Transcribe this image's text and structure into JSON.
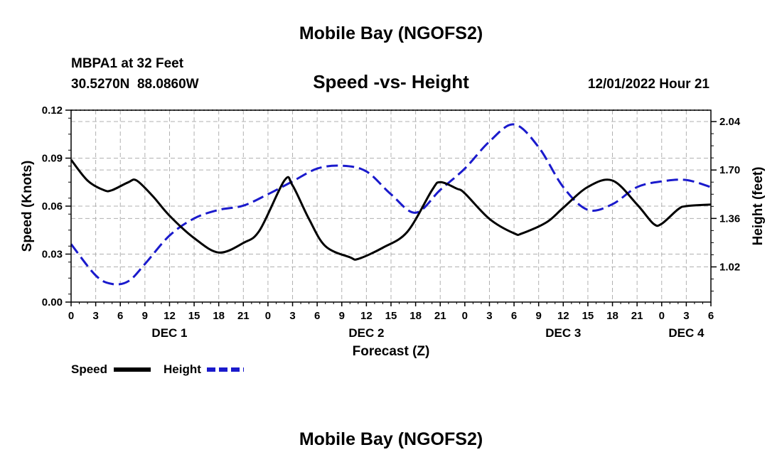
{
  "header": {
    "title": "Mobile Bay (NGOFS2)",
    "station": "MBPA1 at 32 Feet",
    "coords": "30.5270N  88.0860W",
    "subtitle": "Speed -vs- Height",
    "timestamp": "12/01/2022 Hour 21"
  },
  "footer": {
    "title": "Mobile Bay (NGOFS2)"
  },
  "legend": {
    "speed_label": "Speed",
    "height_label": "Height"
  },
  "colors": {
    "speed": "#000000",
    "height": "#1a1acc",
    "grid": "#b0b0b0"
  },
  "chart_data": {
    "type": "line",
    "xlabel": "Forecast (Z)",
    "ylabel_left": "Speed (Knots)",
    "ylabel_right": "Height (feet)",
    "x_unit": "hours since 2022-12-01 00Z",
    "xlim": [
      0,
      78
    ],
    "x_tick_labels": [
      "0",
      "3",
      "6",
      "9",
      "12",
      "15",
      "18",
      "21",
      "0",
      "3",
      "6",
      "9",
      "12",
      "15",
      "18",
      "21",
      "0",
      "3",
      "6",
      "9",
      "12",
      "15",
      "18",
      "21",
      "0",
      "3",
      "6"
    ],
    "date_labels": [
      {
        "label": "DEC 1",
        "x": 12
      },
      {
        "label": "DEC 2",
        "x": 36
      },
      {
        "label": "DEC 3",
        "x": 60
      },
      {
        "label": "DEC 4",
        "x": 75
      }
    ],
    "left_axis": {
      "ylim": [
        0,
        0.12
      ],
      "ticks": [
        "0.00",
        "0.03",
        "0.06",
        "0.09",
        "0.12"
      ]
    },
    "right_axis": {
      "ylim": [
        0.773,
        2.12
      ],
      "ticks": [
        "1.02",
        "1.36",
        "1.70",
        "2.04"
      ]
    },
    "grid": true,
    "legend_position": "bottom-left",
    "series": [
      {
        "name": "Speed",
        "axis": "left",
        "style": "solid",
        "x": [
          0,
          2,
          4,
          5,
          7,
          8,
          10,
          12,
          15,
          18,
          21,
          23,
          26,
          27,
          29,
          31,
          34,
          35,
          38,
          41,
          44,
          45,
          47,
          48,
          51,
          54,
          55,
          58,
          60,
          63,
          66,
          69,
          71,
          72,
          74,
          75,
          78
        ],
        "y": [
          0.089,
          0.076,
          0.07,
          0.07,
          0.075,
          0.076,
          0.066,
          0.054,
          0.04,
          0.031,
          0.037,
          0.045,
          0.076,
          0.073,
          0.052,
          0.035,
          0.028,
          0.027,
          0.034,
          0.044,
          0.07,
          0.075,
          0.071,
          0.068,
          0.052,
          0.043,
          0.043,
          0.05,
          0.059,
          0.072,
          0.076,
          0.061,
          0.049,
          0.049,
          0.058,
          0.06,
          0.061
        ]
      },
      {
        "name": "Height",
        "axis": "right",
        "style": "dashed",
        "x": [
          0,
          3,
          5,
          7,
          9,
          12,
          15,
          18,
          21,
          24,
          27,
          30,
          33,
          36,
          39,
          42,
          45,
          48,
          51,
          54,
          57,
          60,
          63,
          66,
          69,
          72,
          75,
          78
        ],
        "y": [
          1.18,
          0.96,
          0.9,
          0.92,
          1.04,
          1.24,
          1.36,
          1.42,
          1.45,
          1.53,
          1.62,
          1.71,
          1.73,
          1.69,
          1.53,
          1.4,
          1.56,
          1.71,
          1.9,
          2.02,
          1.86,
          1.58,
          1.42,
          1.46,
          1.58,
          1.62,
          1.63,
          1.58
        ]
      }
    ]
  }
}
